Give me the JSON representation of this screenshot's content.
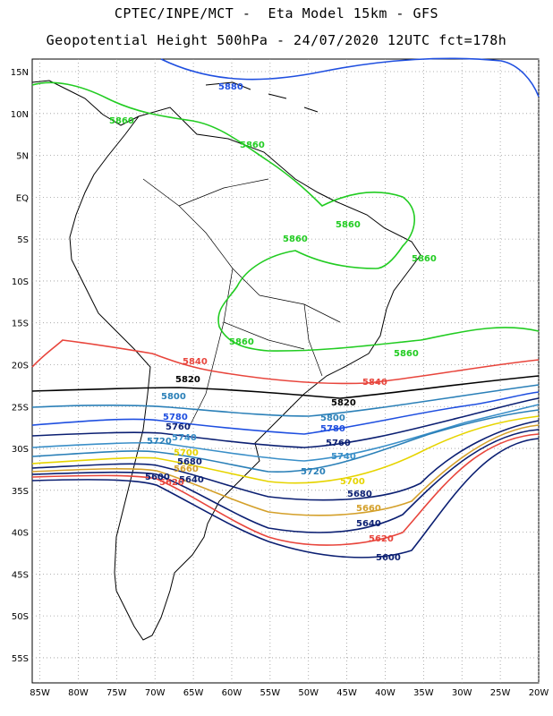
{
  "title": {
    "line1": "CPTEC/INPE/MCT -  Eta Model 15km - GFS",
    "line2": "Geopotential Height 500hPa - 24/07/2020 12UTC fct=178h"
  },
  "axes": {
    "lon_ticks": [
      "85W",
      "80W",
      "75W",
      "70W",
      "65W",
      "60W",
      "55W",
      "50W",
      "45W",
      "40W",
      "35W",
      "30W",
      "25W",
      "20W"
    ],
    "lat_ticks": [
      "15N",
      "10N",
      "5N",
      "EQ",
      "5S",
      "10S",
      "15S",
      "20S",
      "25S",
      "30S",
      "35S",
      "40S",
      "45S",
      "50S",
      "55S"
    ],
    "lon_range": [
      -86,
      -20
    ],
    "lat_range": [
      -58,
      16.5
    ],
    "grid": "dotted"
  },
  "contour_labels": [
    {
      "text": "5880",
      "color": "#1f4fe0"
    },
    {
      "text": "5860",
      "color": "#22cc22"
    },
    {
      "text": "5840",
      "color": "#e8453c"
    },
    {
      "text": "5820",
      "color": "#000000"
    },
    {
      "text": "5800",
      "color": "#2b80b8"
    },
    {
      "text": "5780",
      "color": "#1f4fe0"
    },
    {
      "text": "5760",
      "color": "#0b1f72"
    },
    {
      "text": "5740",
      "color": "#3a8fc8"
    },
    {
      "text": "5720",
      "color": "#2b80b8"
    },
    {
      "text": "5700",
      "color": "#e6d400"
    },
    {
      "text": "5680",
      "color": "#0b1f72"
    },
    {
      "text": "5660",
      "color": "#d4a02a"
    },
    {
      "text": "5640",
      "color": "#0b1f72"
    },
    {
      "text": "5620",
      "color": "#e8453c"
    },
    {
      "text": "5600",
      "color": "#0b1f72"
    }
  ],
  "colors": {
    "coast": "#000000",
    "grid": "#9a9a9a"
  }
}
